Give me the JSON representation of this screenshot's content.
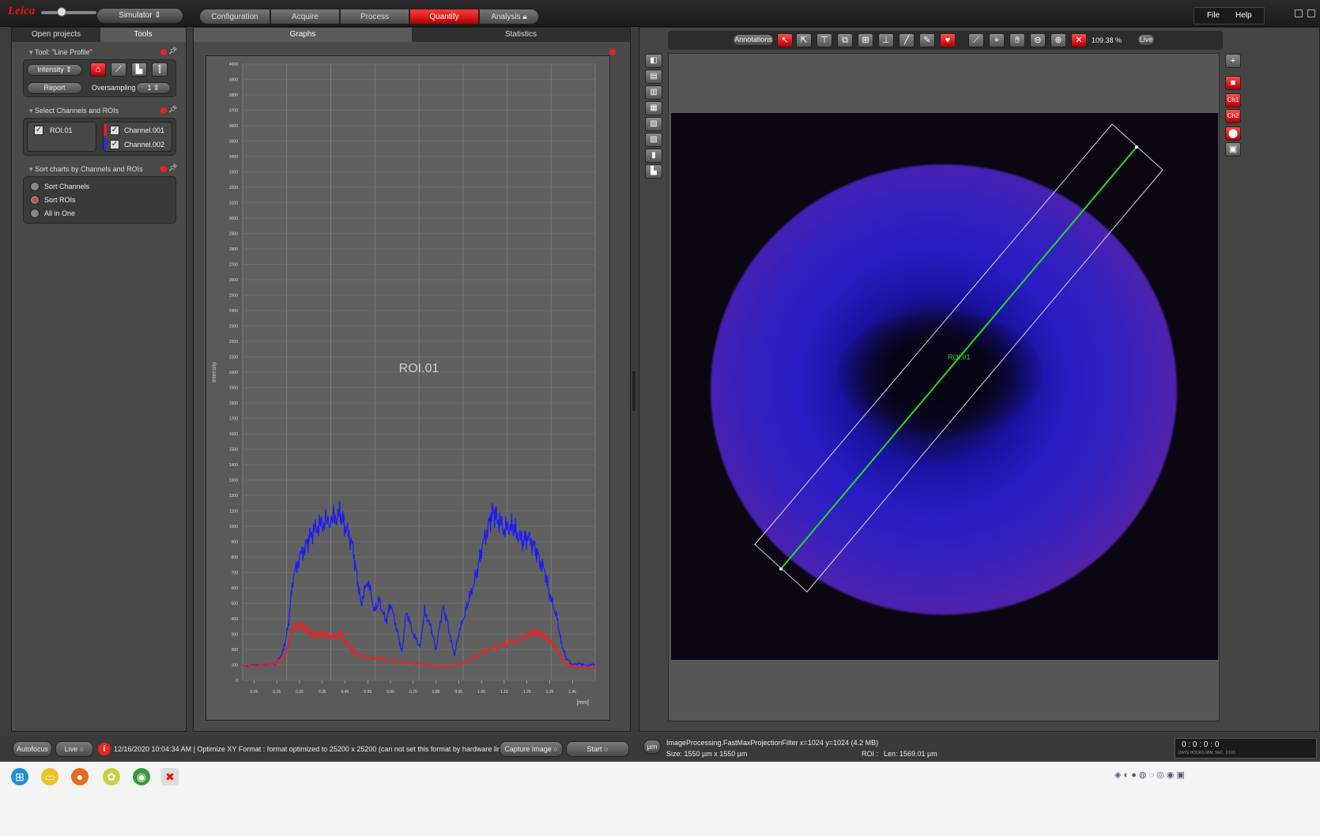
{
  "app": {
    "logo_text": "Leica",
    "mode_label": "Simulator",
    "workflow_steps": [
      {
        "label": "Configuration"
      },
      {
        "label": "Acquire"
      },
      {
        "label": "Process"
      },
      {
        "label": "Quantify"
      },
      {
        "label": "Analysis"
      }
    ],
    "active_step": "Quantify",
    "menu": {
      "file": "File",
      "help": "Help"
    }
  },
  "left_panel": {
    "tabs": [
      {
        "label": "Open projects"
      },
      {
        "label": "Tools"
      }
    ],
    "active_tab": "Tools",
    "tool_section": {
      "title": "Tool: \"Line Profile\"",
      "mode_select": "Intensity",
      "report_label": "Report",
      "oversampling_label": "Oversampling",
      "oversampling_value": "1"
    },
    "channels_section": {
      "title": "Select Channels and ROIs",
      "roi": "ROI.01",
      "channels": [
        {
          "label": "Channel.001",
          "color": "#e02020"
        },
        {
          "label": "Channel.002",
          "color": "#2030e0"
        }
      ]
    },
    "sort_section": {
      "title": "Sort charts by Channels and ROIs",
      "options": [
        {
          "label": "Sort Channels",
          "selected": false
        },
        {
          "label": "Sort ROIs",
          "selected": true
        },
        {
          "label": "All in One",
          "selected": false
        }
      ]
    }
  },
  "center_panel": {
    "tabs": [
      {
        "label": "Graphs"
      },
      {
        "label": "Statistics"
      }
    ],
    "active_tab": "Graphs"
  },
  "chart_data": {
    "type": "line",
    "title": "ROI.01",
    "xlabel": "[mm]",
    "ylabel": "Intensity",
    "ylim": [
      0,
      4000
    ],
    "xlim": [
      0,
      1.55
    ],
    "y_ticks": [
      0,
      100,
      200,
      300,
      400,
      500,
      600,
      700,
      800,
      900,
      1000,
      1100,
      1200,
      1300,
      1400,
      1500,
      1600,
      1700,
      1800,
      1900,
      2000,
      2100,
      2200,
      2300,
      2400,
      2500,
      2600,
      2700,
      2800,
      2900,
      3000,
      3100,
      3200,
      3300,
      3400,
      3500,
      3600,
      3700,
      3800,
      3900,
      4000
    ],
    "x_tick_labels": [
      "0.05",
      "0.15",
      "0.25",
      "0.35",
      "0.45",
      "0.55",
      "0.65",
      "0.75",
      "0.85",
      "0.95",
      "1.05",
      "1.15",
      "1.25",
      "1.35",
      "1.45"
    ],
    "grid": true,
    "series": [
      {
        "name": "Channel.002",
        "color": "#1a1aff",
        "x": [
          0.0,
          0.05,
          0.1,
          0.15,
          0.18,
          0.2,
          0.22,
          0.25,
          0.28,
          0.3,
          0.33,
          0.36,
          0.4,
          0.43,
          0.45,
          0.48,
          0.5,
          0.52,
          0.55,
          0.58,
          0.6,
          0.63,
          0.65,
          0.68,
          0.7,
          0.72,
          0.75,
          0.78,
          0.8,
          0.83,
          0.85,
          0.88,
          0.9,
          0.93,
          0.95,
          0.98,
          1.0,
          1.03,
          1.05,
          1.08,
          1.1,
          1.12,
          1.15,
          1.18,
          1.2,
          1.23,
          1.25,
          1.28,
          1.3,
          1.33,
          1.35,
          1.38,
          1.4,
          1.42,
          1.45,
          1.48,
          1.5,
          1.55
        ],
        "y": [
          90,
          100,
          100,
          110,
          200,
          350,
          650,
          800,
          880,
          950,
          1000,
          1020,
          1050,
          1080,
          1000,
          900,
          700,
          500,
          650,
          450,
          520,
          380,
          500,
          320,
          180,
          450,
          300,
          220,
          450,
          330,
          200,
          480,
          380,
          160,
          300,
          450,
          550,
          700,
          850,
          1000,
          1100,
          1050,
          980,
          1000,
          970,
          900,
          930,
          880,
          800,
          700,
          550,
          420,
          250,
          150,
          100,
          110,
          100,
          100
        ]
      },
      {
        "name": "Channel.001",
        "color": "#ff1a1a",
        "x": [
          0.0,
          0.05,
          0.1,
          0.15,
          0.18,
          0.2,
          0.22,
          0.25,
          0.28,
          0.3,
          0.33,
          0.36,
          0.4,
          0.43,
          0.45,
          0.48,
          0.5,
          0.55,
          0.6,
          0.65,
          0.7,
          0.75,
          0.8,
          0.85,
          0.9,
          0.95,
          1.0,
          1.05,
          1.1,
          1.15,
          1.2,
          1.25,
          1.28,
          1.3,
          1.33,
          1.35,
          1.38,
          1.4,
          1.42,
          1.45,
          1.5,
          1.55
        ],
        "y": [
          90,
          95,
          100,
          110,
          150,
          230,
          340,
          360,
          330,
          300,
          290,
          300,
          280,
          310,
          250,
          200,
          170,
          150,
          140,
          130,
          120,
          110,
          100,
          95,
          90,
          100,
          130,
          180,
          210,
          240,
          260,
          290,
          310,
          300,
          290,
          250,
          200,
          150,
          110,
          90,
          85,
          85
        ]
      }
    ]
  },
  "viewer": {
    "toolbar": {
      "annotations_label": "Annotations",
      "zoom_value": "109.38 %",
      "live_label": "Live"
    },
    "roi_label": "ROI.01",
    "right_tools": [
      "Ch1",
      "Ch2"
    ],
    "status_line1": "ImageProcessing.FastMaxProjectionFilter x=1024 y=1024 (4.2 MB)",
    "status_line2": "Size: 1550 µm x 1550 µm",
    "roi_info_label": "ROI :",
    "roi_info_value": "Len: 1569.01 µm",
    "unit_button": "µm",
    "timer": "0 : 0 : 0 : 0",
    "timer_units": "DAYS  HOURS  MIN.  SEC.  1/100"
  },
  "statusbar": {
    "autofocus": "Autofocus",
    "live": "Live",
    "message": "12/16/2020 10:04:34 AM | Optimize XY Format : format optimized to 25200 x 25200 (can not set this format by hardware limitations)",
    "capture": "Capture Image",
    "start": "Start"
  },
  "colors": {
    "accent": "#e01010",
    "panel": "#4a4a4a",
    "dark": "#2a2a2a",
    "roi_line": "#22dd22"
  }
}
